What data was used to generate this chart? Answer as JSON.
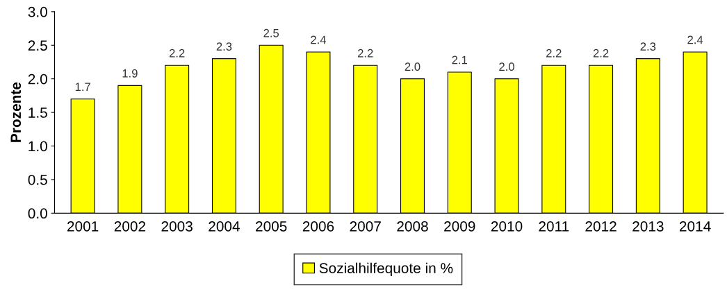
{
  "chart_data": {
    "type": "bar",
    "ylabel": "Prozente",
    "categories": [
      "2001",
      "2002",
      "2003",
      "2004",
      "2005",
      "2006",
      "2007",
      "2008",
      "2009",
      "2010",
      "2011",
      "2012",
      "2013",
      "2014"
    ],
    "series": [
      {
        "name": "Sozialhilfequote in %",
        "color": "#ffff00",
        "values": [
          1.7,
          1.9,
          2.2,
          2.3,
          2.5,
          2.4,
          2.2,
          2.0,
          2.1,
          2.0,
          2.2,
          2.2,
          2.3,
          2.4
        ],
        "value_labels": [
          "1.7",
          "1.9",
          "2.2",
          "2.3",
          "2.5",
          "2.4",
          "2.2",
          "2.0",
          "2.1",
          "2.0",
          "2.2",
          "2.2",
          "2.3",
          "2.4"
        ]
      }
    ],
    "ylim": [
      0,
      3
    ],
    "yticks": [
      {
        "value": 0,
        "label": "0.0"
      },
      {
        "value": 0.5,
        "label": "0.5"
      },
      {
        "value": 1,
        "label": "1.0"
      },
      {
        "value": 1.5,
        "label": "1.5"
      },
      {
        "value": 2,
        "label": "2.0"
      },
      {
        "value": 2.5,
        "label": "2.5"
      },
      {
        "value": 3,
        "label": "3.0"
      }
    ],
    "grid": false,
    "legend": "bottom"
  }
}
